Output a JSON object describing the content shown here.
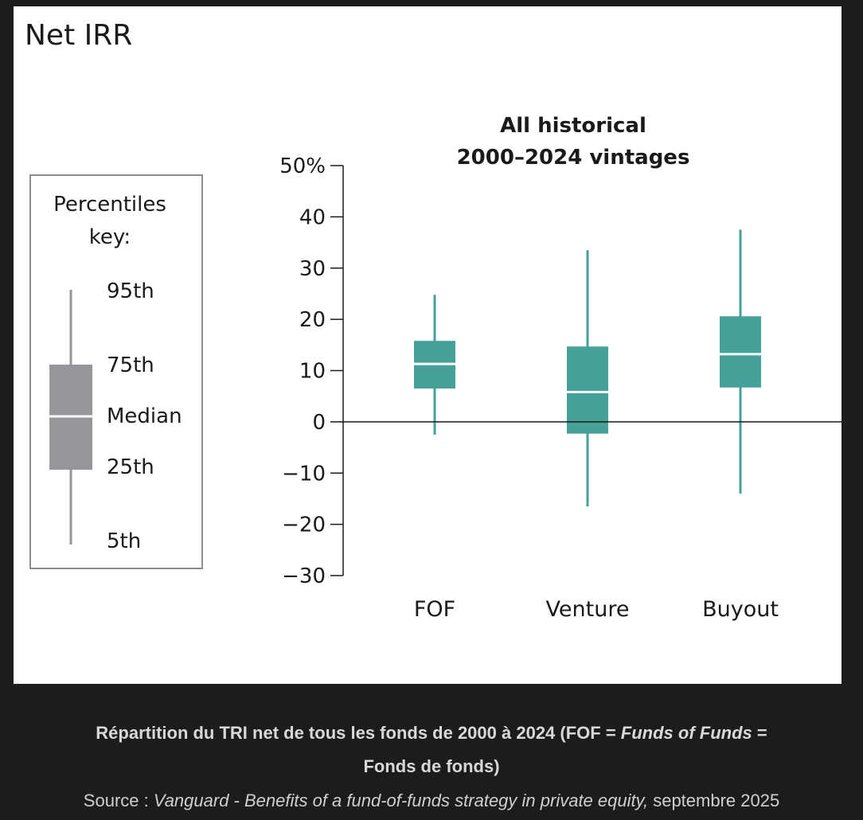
{
  "figure": {
    "title": "Net IRR",
    "legend_key": {
      "title_line1": "Percentiles",
      "title_line2": "key:",
      "labels": [
        "95th",
        "75th",
        "Median",
        "25th",
        "5th"
      ],
      "box_color": "#97979b",
      "median_line_color": "#ffffff"
    }
  },
  "chart_data": {
    "type": "boxplot",
    "title_line1": "All historical",
    "title_line2": "2000–2024 vintages",
    "xlabel": "",
    "ylabel": "",
    "ylim": [
      -30,
      50
    ],
    "yticks": [
      -30,
      -20,
      -10,
      0,
      10,
      20,
      30,
      40,
      50
    ],
    "ytick_labels": [
      "−30",
      "−20",
      "−10",
      "0",
      "10",
      "20",
      "30",
      "40",
      "50%"
    ],
    "zero_line": true,
    "grid": false,
    "color": "#45a19a",
    "categories": [
      "FOF",
      "Venture",
      "Buyout"
    ],
    "series": [
      {
        "category": "FOF",
        "p5": -2.5,
        "p25": 6.5,
        "median": 11.3,
        "p75": 15.8,
        "p95": 24.8
      },
      {
        "category": "Venture",
        "p5": -16.5,
        "p25": -2.3,
        "median": 5.8,
        "p75": 14.7,
        "p95": 33.5
      },
      {
        "category": "Buyout",
        "p5": -14,
        "p25": 6.7,
        "median": 13.2,
        "p75": 20.6,
        "p95": 37.5
      }
    ]
  },
  "caption": {
    "line1": "Répartition du TRI net de tous les fonds de 2000 à 2024 (FOF = ",
    "line1_italic": "Funds of Funds",
    "line1_end": " =",
    "line2": "Fonds de fonds)"
  },
  "source": {
    "prefix": "Source : ",
    "italic": "Vanguard - Benefits of a fund-of-funds strategy in private equity,",
    "suffix": " septembre 2025"
  }
}
